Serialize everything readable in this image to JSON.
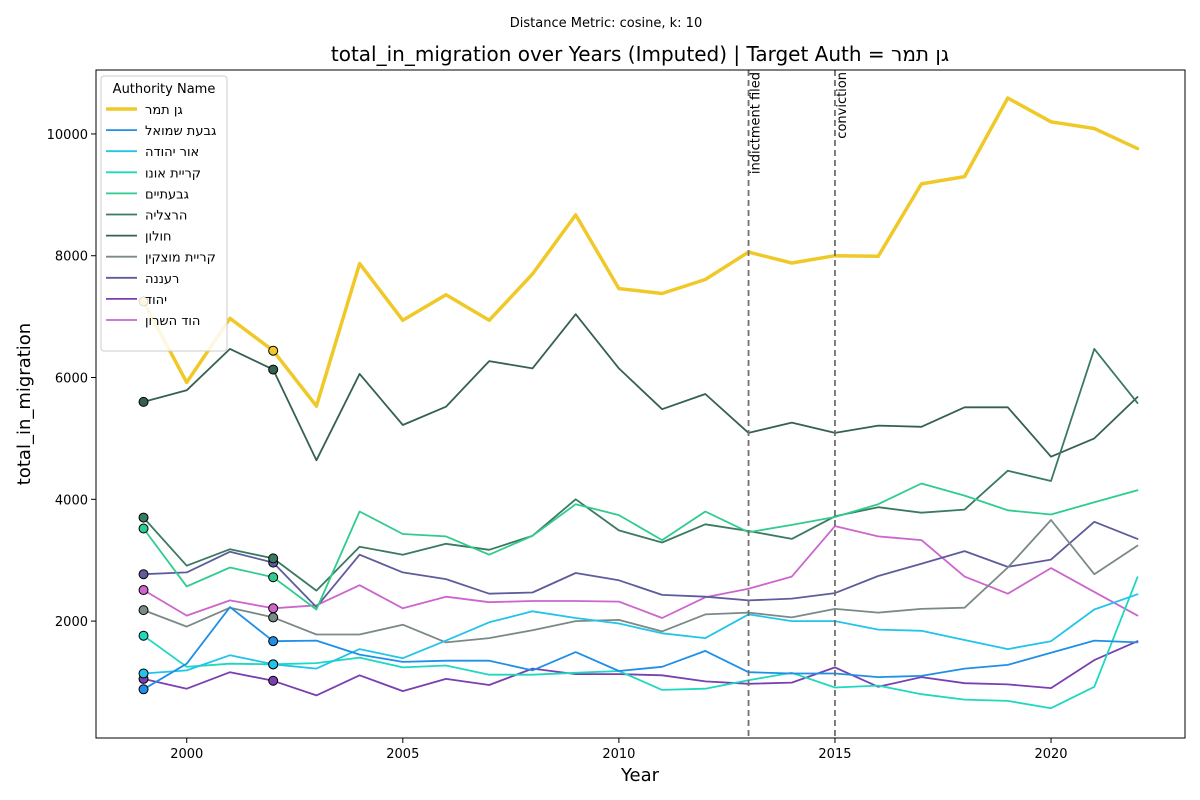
{
  "chart_data": {
    "type": "line",
    "suptitle": "Distance Metric: cosine, k: 10",
    "title": "total_in_migration over Years (Imputed) | Target Auth = גן תמר",
    "xlabel": "Year",
    "ylabel": "total_in_migration",
    "xlim": [
      1997.9,
      2023.1
    ],
    "ylim": [
      80,
      11050
    ],
    "xticks": [
      2000,
      2005,
      2010,
      2015,
      2020
    ],
    "yticks": [
      2000,
      4000,
      6000,
      8000,
      10000
    ],
    "grid": false,
    "legend": {
      "title": "Authority Name",
      "placement": "top-left"
    },
    "x": [
      1999,
      2000,
      2001,
      2002,
      2003,
      2004,
      2005,
      2006,
      2007,
      2008,
      2009,
      2010,
      2011,
      2012,
      2013,
      2014,
      2015,
      2016,
      2017,
      2018,
      2019,
      2020,
      2021,
      2022
    ],
    "events": [
      {
        "x": 2013,
        "label": "indictment filed"
      },
      {
        "x": 2015,
        "label": "conviction"
      }
    ],
    "series": [
      {
        "name": "גן תמר",
        "color": "#f0c928",
        "width": 3.5,
        "imputed_x": [
          1999,
          2002
        ],
        "values": [
          7250,
          5920,
          6970,
          6440,
          5530,
          7870,
          6940,
          7360,
          6940,
          7700,
          8670,
          7460,
          7380,
          7610,
          8060,
          7880,
          8000,
          7990,
          9180,
          9300,
          10590,
          10200,
          10090,
          9760
        ]
      },
      {
        "name": "גבעת שמואל",
        "color": "#1f8fe8",
        "width": 1.8,
        "imputed_x": [
          1999,
          2002
        ],
        "values": [
          880,
          1300,
          2230,
          1670,
          1680,
          1450,
          1330,
          1350,
          1350,
          1190,
          1490,
          1180,
          1250,
          1510,
          1160,
          1140,
          1140,
          1080,
          1100,
          1220,
          1280,
          1480,
          1680,
          1650
        ]
      },
      {
        "name": "אור יהודה",
        "color": "#22c4ea",
        "width": 1.8,
        "imputed_x": [
          1999,
          2002
        ],
        "values": [
          1140,
          1190,
          1440,
          1290,
          1220,
          1540,
          1390,
          1680,
          1980,
          2160,
          2050,
          1960,
          1800,
          1720,
          2110,
          2000,
          2000,
          1860,
          1840,
          1690,
          1540,
          1670,
          2190,
          2440
        ]
      },
      {
        "name": "קריית אונו",
        "color": "#1ed8c0",
        "width": 1.8,
        "imputed_x": [
          1999,
          2002
        ],
        "values": [
          1760,
          1250,
          1300,
          1290,
          1310,
          1400,
          1240,
          1270,
          1120,
          1120,
          1150,
          1180,
          870,
          890,
          1030,
          1150,
          910,
          940,
          800,
          710,
          690,
          570,
          920,
          2720
        ]
      },
      {
        "name": "גבעתיים",
        "color": "#2ecc8e",
        "width": 1.8,
        "imputed_x": [
          1999,
          2002
        ],
        "values": [
          3520,
          2570,
          2880,
          2720,
          2190,
          3800,
          3430,
          3390,
          3090,
          3400,
          3920,
          3740,
          3330,
          3800,
          3460,
          3580,
          3710,
          3920,
          4260,
          4060,
          3820,
          3750,
          3950,
          4150
        ]
      },
      {
        "name": "הרצליה",
        "color": "#3a7a60",
        "width": 1.8,
        "imputed_x": [
          1999,
          2002
        ],
        "values": [
          3700,
          2910,
          3180,
          3030,
          2500,
          3220,
          3090,
          3270,
          3170,
          3400,
          4000,
          3490,
          3290,
          3590,
          3480,
          3350,
          3720,
          3870,
          3780,
          3830,
          4470,
          4300,
          6470,
          5580
        ]
      },
      {
        "name": "חולון",
        "color": "#35614f",
        "width": 1.8,
        "imputed_x": [
          1999,
          2002
        ],
        "values": [
          5600,
          5790,
          6470,
          6130,
          4640,
          6060,
          5220,
          5520,
          6270,
          6150,
          7040,
          6150,
          5480,
          5730,
          5090,
          5260,
          5090,
          5210,
          5190,
          5510,
          5510,
          4700,
          5000,
          5680
        ]
      },
      {
        "name": "קריית מוצקין",
        "color": "#7a8a86",
        "width": 1.8,
        "imputed_x": [
          1999,
          2002
        ],
        "values": [
          2180,
          1910,
          2220,
          2060,
          1780,
          1780,
          1940,
          1650,
          1720,
          1850,
          2000,
          2020,
          1830,
          2110,
          2140,
          2060,
          2200,
          2140,
          2200,
          2220,
          2880,
          3660,
          2770,
          3240
        ]
      },
      {
        "name": "רעננה",
        "color": "#5e5c9c",
        "width": 1.8,
        "imputed_x": [
          1999,
          2002
        ],
        "values": [
          2770,
          2800,
          3140,
          2960,
          2230,
          3090,
          2800,
          2690,
          2450,
          2470,
          2790,
          2670,
          2430,
          2400,
          2340,
          2370,
          2460,
          2740,
          2940,
          3150,
          2890,
          3010,
          3630,
          3350
        ]
      },
      {
        "name": "יהוד",
        "color": "#7a3fb0",
        "width": 1.8,
        "imputed_x": [
          1999,
          2002
        ],
        "values": [
          1050,
          890,
          1160,
          1020,
          780,
          1110,
          850,
          1050,
          950,
          1220,
          1130,
          1130,
          1110,
          1010,
          970,
          990,
          1240,
          920,
          1080,
          980,
          960,
          900,
          1360,
          1670
        ]
      },
      {
        "name": "הוד השרון",
        "color": "#cc66cc",
        "width": 1.8,
        "imputed_x": [
          1999,
          2002
        ],
        "values": [
          2510,
          2090,
          2340,
          2210,
          2260,
          2590,
          2210,
          2400,
          2310,
          2330,
          2330,
          2320,
          2050,
          2390,
          2530,
          2730,
          3560,
          3390,
          3330,
          2730,
          2450,
          2870,
          2480,
          2090
        ]
      }
    ]
  }
}
